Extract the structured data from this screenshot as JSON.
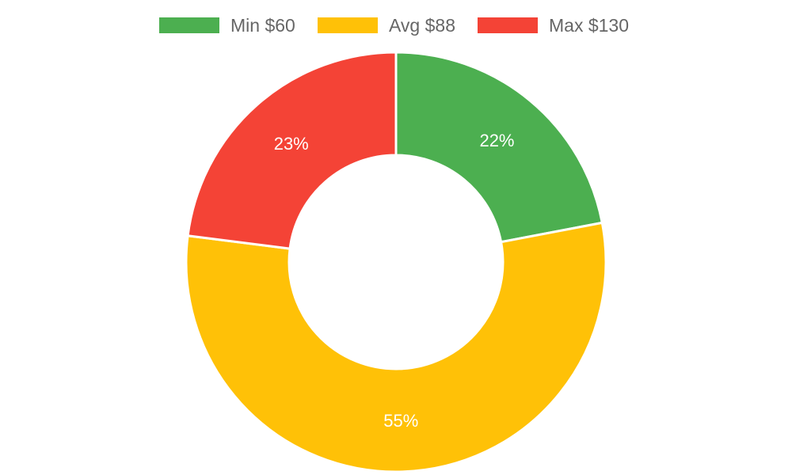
{
  "chart_data": {
    "type": "pie",
    "donut": true,
    "legend_position": "top",
    "slices": [
      {
        "label": "Min $60",
        "value": 22,
        "display": "22%",
        "color": "#4caf50"
      },
      {
        "label": "Avg $88",
        "value": 55,
        "display": "55%",
        "color": "#ffc107"
      },
      {
        "label": "Max $130",
        "value": 23,
        "display": "23%",
        "color": "#f44336"
      }
    ]
  }
}
